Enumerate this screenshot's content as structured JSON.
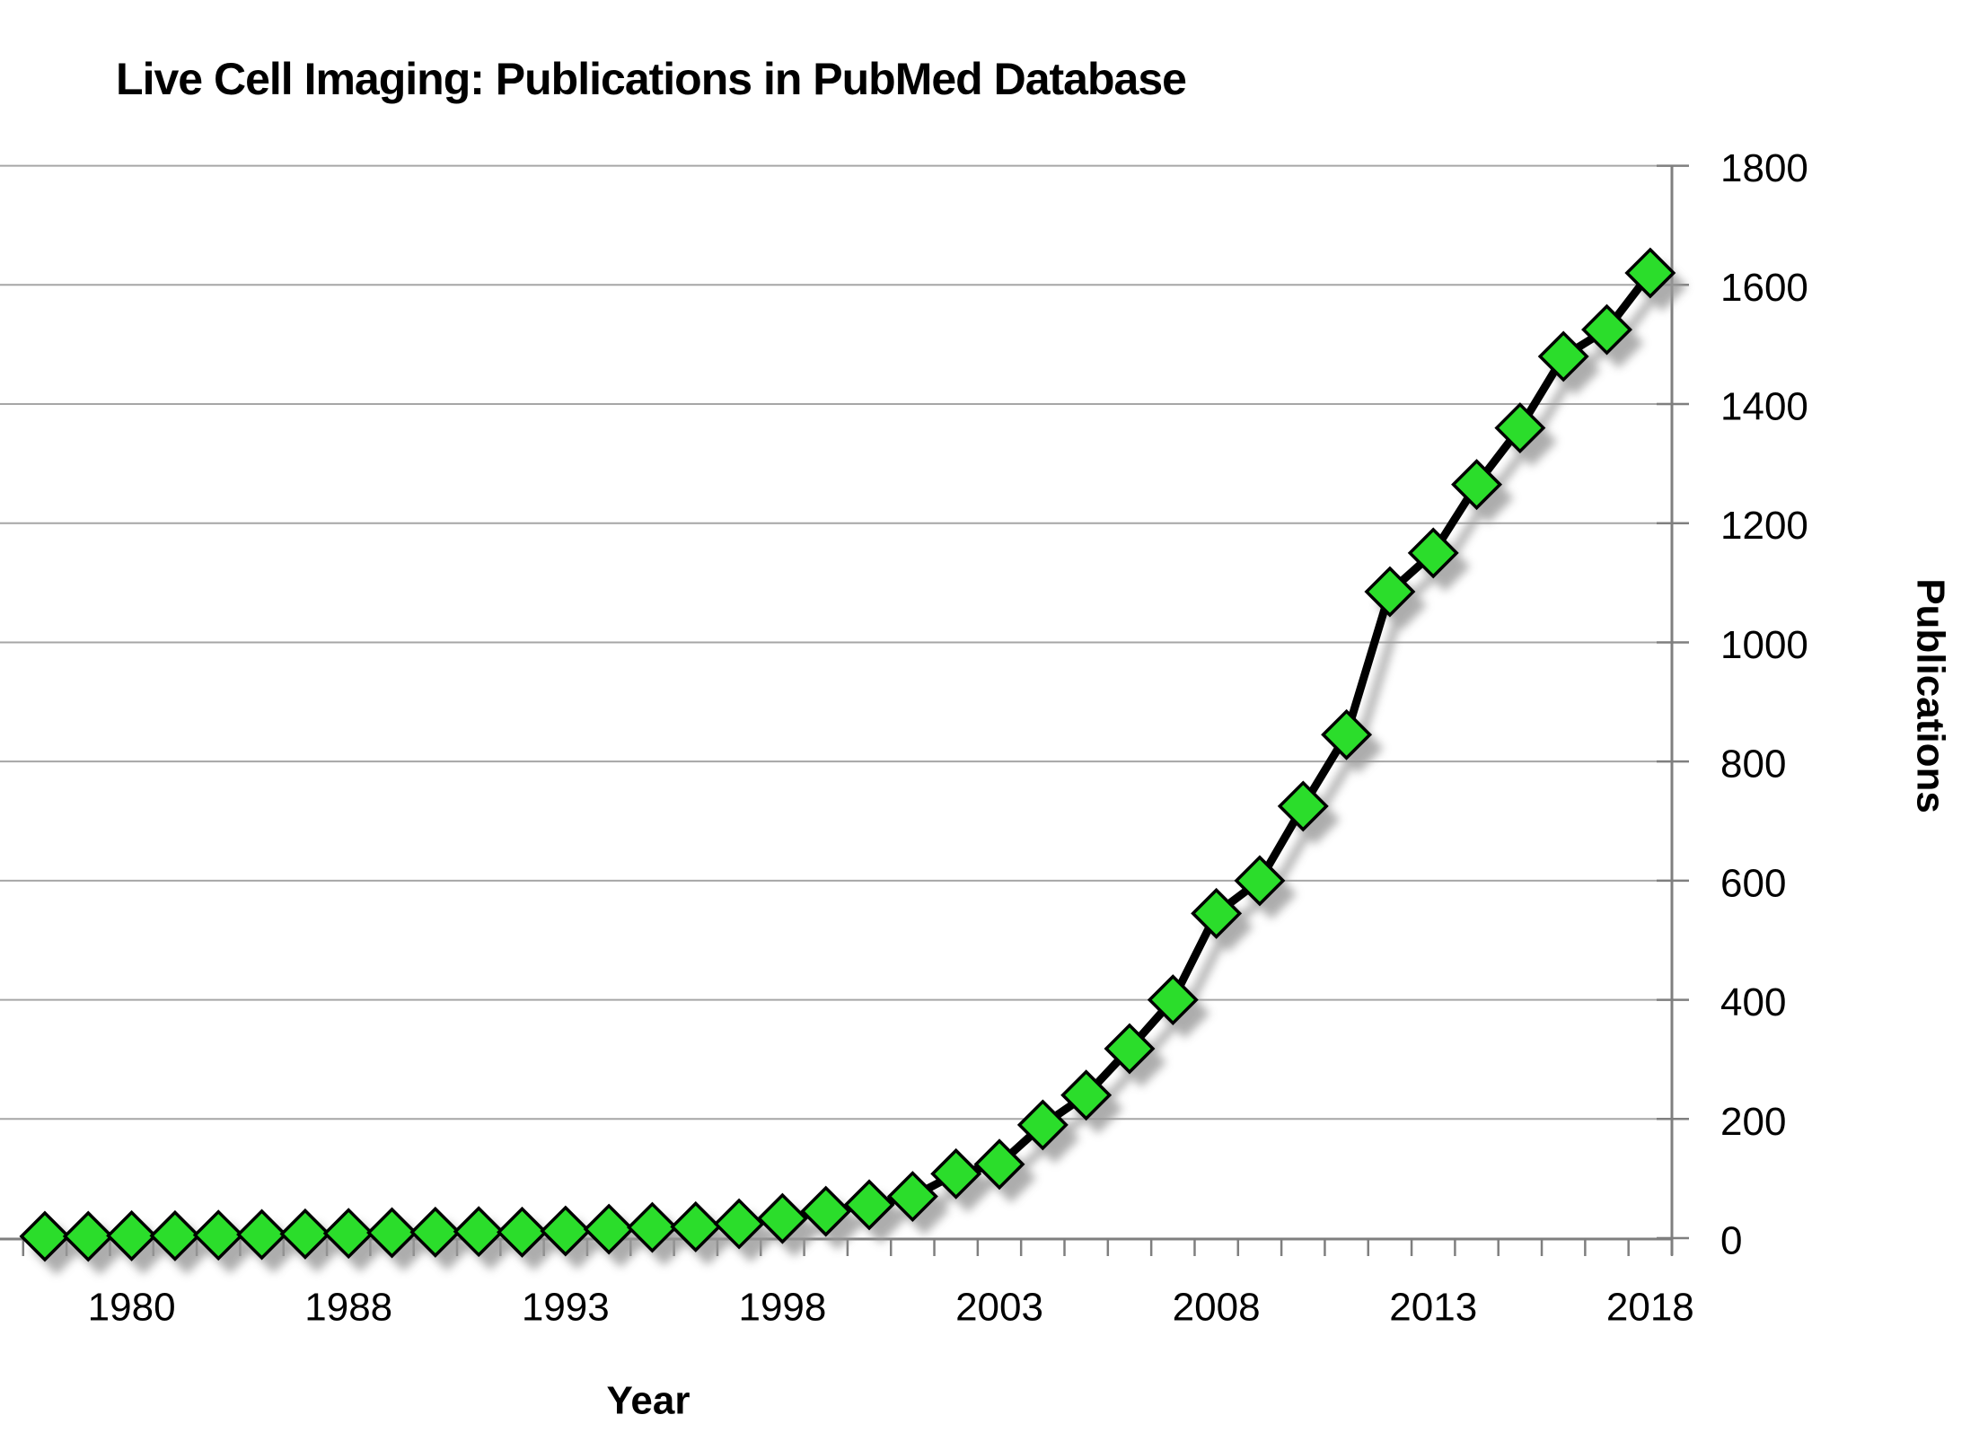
{
  "chart_data": {
    "type": "line",
    "title": "Live Cell Imaging:  Publications in PubMed Database",
    "xlabel": "Year",
    "ylabel": "Publications",
    "ylim": [
      0,
      1800
    ],
    "y_ticks": [
      0,
      200,
      400,
      600,
      800,
      1000,
      1200,
      1400,
      1600,
      1800
    ],
    "y_tick_labels": [
      "0",
      "200",
      "400",
      "600",
      "800",
      "1000",
      "1200",
      "1400",
      "1600",
      "1800"
    ],
    "y_axis_side": "right",
    "x_tick_labels": [
      "1980",
      "1988",
      "1993",
      "1998",
      "2003",
      "2008",
      "2013",
      "2018"
    ],
    "x_tick_indexes": [
      2,
      7,
      12,
      17,
      22,
      27,
      32,
      37
    ],
    "grid": true,
    "legend": "none",
    "marker_shape": "diamond",
    "colors": {
      "marker_fill": "#2BDD2B",
      "marker_stroke": "#000000",
      "line": "#000000",
      "gridline": "#A6A6A6",
      "axis": "#7F7F7F",
      "shadow": "#999999",
      "background": "#FFFFFF",
      "text": "#000000"
    },
    "series": [
      {
        "name": "Publications",
        "points": [
          {
            "year": 1978,
            "value": 3
          },
          {
            "year": 1979,
            "value": 3
          },
          {
            "year": 1980,
            "value": 4
          },
          {
            "year": 1982,
            "value": 4
          },
          {
            "year": 1984,
            "value": 5
          },
          {
            "year": 1986,
            "value": 6
          },
          {
            "year": 1987,
            "value": 7
          },
          {
            "year": 1988,
            "value": 8
          },
          {
            "year": 1989,
            "value": 9
          },
          {
            "year": 1990,
            "value": 10
          },
          {
            "year": 1991,
            "value": 11
          },
          {
            "year": 1992,
            "value": 10
          },
          {
            "year": 1993,
            "value": 12
          },
          {
            "year": 1994,
            "value": 15
          },
          {
            "year": 1995,
            "value": 18
          },
          {
            "year": 1996,
            "value": 19
          },
          {
            "year": 1997,
            "value": 24
          },
          {
            "year": 1998,
            "value": 33
          },
          {
            "year": 1999,
            "value": 45
          },
          {
            "year": 2000,
            "value": 56
          },
          {
            "year": 2001,
            "value": 70
          },
          {
            "year": 2002,
            "value": 108
          },
          {
            "year": 2003,
            "value": 124
          },
          {
            "year": 2004,
            "value": 190
          },
          {
            "year": 2005,
            "value": 240
          },
          {
            "year": 2006,
            "value": 318
          },
          {
            "year": 2007,
            "value": 400
          },
          {
            "year": 2008,
            "value": 545
          },
          {
            "year": 2009,
            "value": 600
          },
          {
            "year": 2010,
            "value": 725
          },
          {
            "year": 2011,
            "value": 845
          },
          {
            "year": 2012,
            "value": 1085
          },
          {
            "year": 2013,
            "value": 1150
          },
          {
            "year": 2014,
            "value": 1265
          },
          {
            "year": 2015,
            "value": 1360
          },
          {
            "year": 2016,
            "value": 1480
          },
          {
            "year": 2017,
            "value": 1525
          },
          {
            "year": 2018,
            "value": 1620
          }
        ]
      }
    ]
  }
}
